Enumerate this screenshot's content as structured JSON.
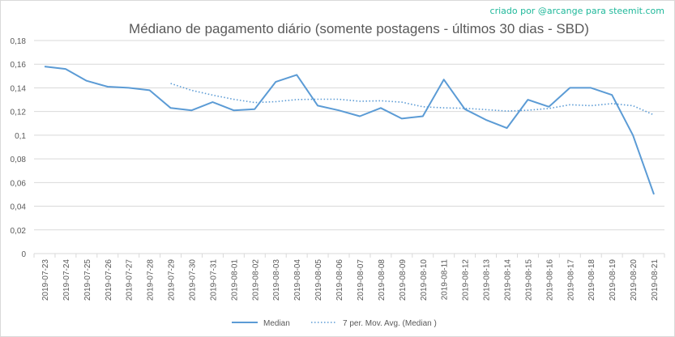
{
  "credit": "criado por @arcange para steemit.com",
  "chart_data": {
    "type": "line",
    "title": "Médiano de pagamento diário (somente postagens - últimos 30 dias - SBD)",
    "xlabel": "",
    "ylabel": "",
    "ylim": [
      0,
      0.18
    ],
    "yticks": [
      "0",
      "0,02",
      "0,04",
      "0,06",
      "0,08",
      "0,1",
      "0,12",
      "0,14",
      "0,16",
      "0,18"
    ],
    "grid": true,
    "legend_position": "bottom",
    "categories": [
      "2019-07-23",
      "2019-07-24",
      "2019-07-25",
      "2019-07-26",
      "2019-07-27",
      "2019-07-28",
      "2019-07-29",
      "2019-07-30",
      "2019-07-31",
      "2019-08-01",
      "2019-08-02",
      "2019-08-03",
      "2019-08-04",
      "2019-08-05",
      "2019-08-06",
      "2019-08-07",
      "2019-08-08",
      "2019-08-09",
      "2019-08-10",
      "2019-08-11",
      "2019-08-12",
      "2019-08-13",
      "2019-08-14",
      "2019-08-15",
      "2019-08-16",
      "2019-08-17",
      "2019-08-18",
      "2019-08-19",
      "2019-08-20",
      "2019-08-21"
    ],
    "series": [
      {
        "name": "Median",
        "color": "#5b9bd5",
        "style": "solid",
        "values": [
          0.158,
          0.156,
          0.146,
          0.141,
          0.14,
          0.138,
          0.123,
          0.121,
          0.128,
          0.121,
          0.122,
          0.145,
          0.151,
          0.125,
          0.121,
          0.116,
          0.123,
          0.114,
          0.116,
          0.147,
          0.122,
          0.113,
          0.106,
          0.13,
          0.124,
          0.14,
          0.14,
          0.134,
          0.1,
          0.05
        ]
      },
      {
        "name": "7 per. Mov. Avg. (Median )",
        "color": "#5b9bd5",
        "style": "dotted",
        "values": [
          null,
          null,
          null,
          null,
          null,
          null,
          0.1437,
          0.1379,
          0.1339,
          0.1303,
          0.1276,
          0.1283,
          0.1301,
          0.1304,
          0.1304,
          0.1287,
          0.1291,
          0.1279,
          0.124,
          0.1231,
          0.1227,
          0.1216,
          0.1204,
          0.1211,
          0.1226,
          0.1257,
          0.125,
          0.1267,
          0.1249,
          0.1171
        ]
      }
    ]
  }
}
